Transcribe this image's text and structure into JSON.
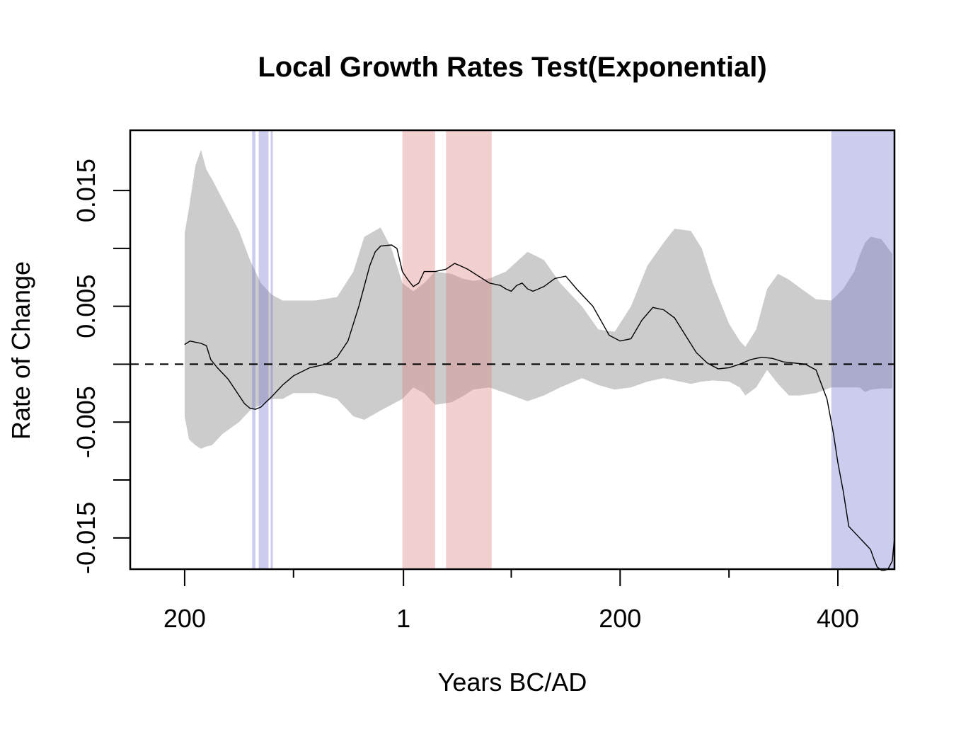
{
  "chart_data": {
    "type": "line",
    "title": "Local Growth Rates Test(Exponential)",
    "xlabel": "Years BC/AD",
    "ylabel": "Rate of Change",
    "x_ticks": [
      {
        "value": -200,
        "label": "200"
      },
      {
        "value": 1,
        "label": "1"
      },
      {
        "value": 200,
        "label": "200"
      },
      {
        "value": 400,
        "label": "400"
      }
    ],
    "x_minor_ticks": [
      -100,
      100,
      300
    ],
    "y_ticks": [
      {
        "value": 0.015,
        "label": "0.015"
      },
      {
        "value": 0.01,
        "label": ""
      },
      {
        "value": 0.005,
        "label": "0.005"
      },
      {
        "value": 0.0,
        "label": ""
      },
      {
        "value": -0.005,
        "label": "-0.005"
      },
      {
        "value": -0.01,
        "label": ""
      },
      {
        "value": -0.015,
        "label": "-0.015"
      }
    ],
    "xlim": [
      -250,
      452
    ],
    "ylim": [
      -0.0177,
      0.0202
    ],
    "grid": false,
    "reference_line": {
      "y": 0,
      "style": "dashed"
    },
    "colors": {
      "envelope": "#cccccc",
      "positive_deviation": "rgba(220,120,120,0.35)",
      "negative_deviation": "rgba(110,110,210,0.35)",
      "line": "#000000"
    },
    "positive_deviation_intervals": [
      [
        0,
        30
      ],
      [
        40,
        82
      ]
    ],
    "negative_deviation_intervals": [
      [
        -138,
        -135
      ],
      [
        -132,
        -123
      ],
      [
        -121,
        -119
      ],
      [
        394,
        452
      ]
    ],
    "envelope": {
      "x": [
        -200,
        -196,
        -190,
        -185,
        -180,
        -175,
        -165,
        -150,
        -140,
        -130,
        -120,
        -110,
        -100,
        -80,
        -60,
        -45,
        -35,
        -20,
        -10,
        0,
        10,
        20,
        30,
        45,
        55,
        65,
        80,
        95,
        115,
        130,
        145,
        165,
        180,
        195,
        210,
        225,
        240,
        250,
        265,
        275,
        285,
        300,
        310,
        315,
        325,
        335,
        345,
        355,
        365,
        380,
        394,
        405,
        415,
        420,
        425,
        430,
        440,
        450
      ],
      "upper": [
        0.0113,
        0.0135,
        0.0172,
        0.0185,
        0.0168,
        0.016,
        0.0142,
        0.0115,
        0.009,
        0.007,
        0.006,
        0.0055,
        0.0055,
        0.0055,
        0.0058,
        0.008,
        0.011,
        0.0118,
        0.01,
        0.007,
        0.0063,
        0.007,
        0.008,
        0.0078,
        0.0074,
        0.0072,
        0.0074,
        0.008,
        0.0097,
        0.009,
        0.007,
        0.005,
        0.003,
        0.0028,
        0.005,
        0.0085,
        0.0105,
        0.0117,
        0.0115,
        0.01,
        0.007,
        0.0035,
        0.002,
        0.0015,
        0.003,
        0.0065,
        0.0078,
        0.0073,
        0.0066,
        0.0056,
        0.0055,
        0.0065,
        0.008,
        0.0094,
        0.0105,
        0.011,
        0.0108,
        0.0095
      ],
      "lower": [
        -0.0045,
        -0.0065,
        -0.007,
        -0.0073,
        -0.0071,
        -0.007,
        -0.006,
        -0.005,
        -0.004,
        -0.0035,
        -0.003,
        -0.003,
        -0.0025,
        -0.0025,
        -0.003,
        -0.0045,
        -0.0048,
        -0.004,
        -0.0035,
        -0.003,
        -0.002,
        -0.0025,
        -0.0035,
        -0.0033,
        -0.0028,
        -0.0022,
        -0.002,
        -0.0025,
        -0.0032,
        -0.0027,
        -0.002,
        -0.0012,
        -0.0018,
        -0.0022,
        -0.002,
        -0.0015,
        -0.0012,
        -0.0014,
        -0.0017,
        -0.0015,
        -0.0014,
        -0.0015,
        -0.002,
        -0.0027,
        -0.002,
        -0.0005,
        -0.0017,
        -0.0027,
        -0.0027,
        -0.0025,
        -0.002,
        -0.002,
        -0.002,
        -0.002,
        -0.0024,
        -0.0022,
        -0.0021,
        -0.0021
      ]
    },
    "series": [
      {
        "x": [
          -200,
          -195,
          -190,
          -185,
          -180,
          -176,
          -170,
          -160,
          -150,
          -145,
          -140,
          -135,
          -130,
          -120,
          -110,
          -100,
          -85,
          -70,
          -60,
          -50,
          -40,
          -30,
          -25,
          -20,
          -10,
          -5,
          0,
          5,
          10,
          15,
          20,
          30,
          40,
          48,
          53,
          60,
          70,
          80,
          90,
          95,
          100,
          105,
          110,
          115,
          120,
          130,
          140,
          150,
          160,
          175,
          190,
          200,
          210,
          220,
          230,
          240,
          250,
          260,
          270,
          280,
          290,
          300,
          310,
          320,
          330,
          340,
          350,
          360,
          370,
          380,
          390,
          396,
          400,
          405,
          410,
          415,
          420,
          425,
          430,
          433,
          436,
          440,
          443,
          446,
          450,
          452
        ],
        "y": [
          0.0017,
          0.002,
          0.0019,
          0.0018,
          0.0016,
          0.0004,
          -0.0003,
          -0.0013,
          -0.0027,
          -0.0034,
          -0.0038,
          -0.0039,
          -0.0037,
          -0.0028,
          -0.0018,
          -0.001,
          -0.0003,
          0.0,
          0.0006,
          0.002,
          0.005,
          0.0085,
          0.0097,
          0.0102,
          0.0103,
          0.01,
          0.008,
          0.0073,
          0.0067,
          0.007,
          0.008,
          0.008,
          0.0082,
          0.0087,
          0.0085,
          0.0082,
          0.0076,
          0.007,
          0.0068,
          0.0065,
          0.0063,
          0.0068,
          0.007,
          0.0065,
          0.0063,
          0.0067,
          0.0074,
          0.0076,
          0.0065,
          0.005,
          0.0025,
          0.002,
          0.0022,
          0.0038,
          0.0049,
          0.0047,
          0.004,
          0.0025,
          0.001,
          0.0001,
          -0.0004,
          -0.0003,
          0.0,
          0.0004,
          0.0006,
          0.0005,
          0.0002,
          0.0001,
          0.0,
          -0.0005,
          -0.003,
          -0.006,
          -0.0085,
          -0.011,
          -0.014,
          -0.0145,
          -0.015,
          -0.0155,
          -0.016,
          -0.0168,
          -0.0175,
          -0.0178,
          -0.0178,
          -0.0177,
          -0.017,
          -0.015
        ]
      }
    ]
  }
}
